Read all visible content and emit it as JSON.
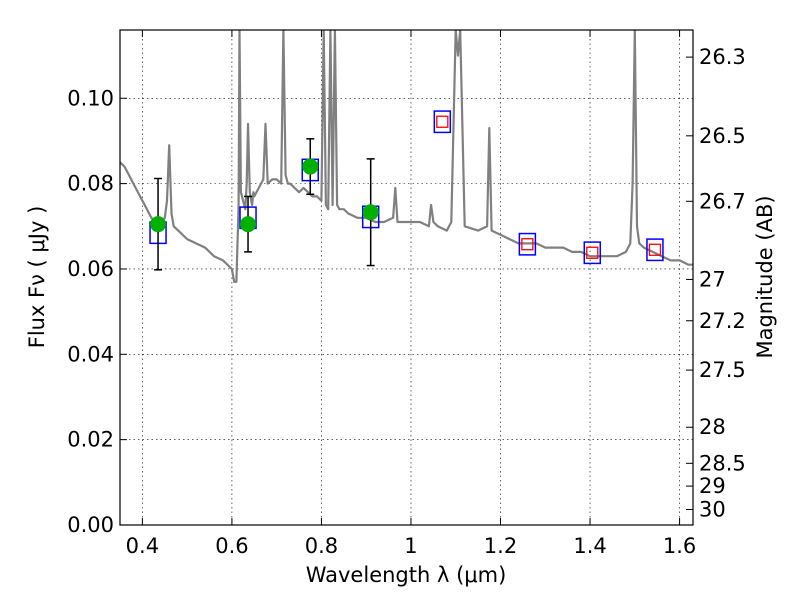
{
  "chart_data": {
    "type": "scatter",
    "xlabel": "Wavelength  λ (μm)",
    "ylabel": "Flux  Fν  ( μJy )",
    "ylabel_right": "Magnitude (AB)",
    "xlim": [
      0.35,
      1.63
    ],
    "ylim": [
      0.0,
      0.116
    ],
    "x_ticks": [
      0.4,
      0.6,
      0.8,
      1.0,
      1.2,
      1.4,
      1.6
    ],
    "x_tick_labels": [
      "0.4",
      "0.6",
      "0.8",
      "1",
      "1.2",
      "1.4",
      "1.6"
    ],
    "y_ticks": [
      0.0,
      0.02,
      0.04,
      0.06,
      0.08,
      0.1
    ],
    "y_tick_labels": [
      "0.00",
      "0.02",
      "0.04",
      "0.06",
      "0.08",
      "0.10"
    ],
    "right_ticks": [
      {
        "label": "26.3",
        "value": 26.3
      },
      {
        "label": "26.5",
        "value": 26.5
      },
      {
        "label": "26.7",
        "value": 26.7
      },
      {
        "label": "27",
        "value": 27.0
      },
      {
        "label": "27.2",
        "value": 27.2
      },
      {
        "label": "27.5",
        "value": 27.5
      },
      {
        "label": "28",
        "value": 28.0
      },
      {
        "label": "28.5",
        "value": 28.5
      },
      {
        "label": "29",
        "value": 29.0
      },
      {
        "label": "30",
        "value": 30.0
      }
    ],
    "grid": true,
    "spectrum": {
      "color": "#808080",
      "x": [
        0.35,
        0.36,
        0.37,
        0.38,
        0.39,
        0.4,
        0.41,
        0.42,
        0.43,
        0.44,
        0.45,
        0.455,
        0.46,
        0.465,
        0.47,
        0.48,
        0.5,
        0.52,
        0.54,
        0.56,
        0.58,
        0.6,
        0.605,
        0.61,
        0.615,
        0.617,
        0.62,
        0.625,
        0.63,
        0.633,
        0.636,
        0.64,
        0.645,
        0.648,
        0.65,
        0.66,
        0.67,
        0.675,
        0.68,
        0.69,
        0.7,
        0.71,
        0.715,
        0.72,
        0.725,
        0.73,
        0.74,
        0.75,
        0.76,
        0.77,
        0.78,
        0.79,
        0.8,
        0.805,
        0.81,
        0.815,
        0.82,
        0.825,
        0.83,
        0.835,
        0.84,
        0.85,
        0.86,
        0.88,
        0.9,
        0.92,
        0.94,
        0.96,
        0.965,
        0.97,
        0.98,
        1.0,
        1.02,
        1.04,
        1.045,
        1.05,
        1.06,
        1.08,
        1.09,
        1.1,
        1.105,
        1.11,
        1.12,
        1.15,
        1.17,
        1.175,
        1.18,
        1.2,
        1.22,
        1.24,
        1.26,
        1.28,
        1.3,
        1.32,
        1.34,
        1.36,
        1.38,
        1.4,
        1.42,
        1.44,
        1.46,
        1.48,
        1.49,
        1.495,
        1.5,
        1.505,
        1.51,
        1.52,
        1.54,
        1.56,
        1.58,
        1.6,
        1.62,
        1.63
      ],
      "y": [
        0.085,
        0.084,
        0.082,
        0.08,
        0.078,
        0.076,
        0.074,
        0.072,
        0.071,
        0.071,
        0.072,
        0.076,
        0.089,
        0.073,
        0.07,
        0.069,
        0.067,
        0.066,
        0.065,
        0.063,
        0.062,
        0.06,
        0.057,
        0.057,
        0.075,
        0.116,
        0.078,
        0.076,
        0.074,
        0.08,
        0.094,
        0.078,
        0.075,
        0.078,
        0.077,
        0.079,
        0.081,
        0.094,
        0.08,
        0.081,
        0.081,
        0.08,
        0.116,
        0.082,
        0.08,
        0.08,
        0.079,
        0.078,
        0.079,
        0.078,
        0.077,
        0.077,
        0.076,
        0.116,
        0.075,
        0.074,
        0.116,
        0.075,
        0.116,
        0.075,
        0.074,
        0.074,
        0.073,
        0.072,
        0.072,
        0.071,
        0.071,
        0.072,
        0.079,
        0.071,
        0.071,
        0.071,
        0.071,
        0.07,
        0.075,
        0.071,
        0.07,
        0.069,
        0.071,
        0.116,
        0.11,
        0.116,
        0.07,
        0.069,
        0.07,
        0.093,
        0.069,
        0.068,
        0.067,
        0.066,
        0.066,
        0.066,
        0.065,
        0.065,
        0.065,
        0.064,
        0.064,
        0.063,
        0.063,
        0.063,
        0.063,
        0.064,
        0.066,
        0.08,
        0.116,
        0.07,
        0.066,
        0.065,
        0.064,
        0.063,
        0.062,
        0.062,
        0.061,
        0.061
      ]
    },
    "observed_points": {
      "color": "#00b000",
      "points": [
        {
          "x": 0.435,
          "y": 0.0705,
          "yerr": 0.0107
        },
        {
          "x": 0.636,
          "y": 0.0705,
          "yerr": 0.0065
        },
        {
          "x": 0.775,
          "y": 0.084,
          "yerr": 0.0065
        },
        {
          "x": 0.91,
          "y": 0.0733,
          "yerr": 0.0125
        }
      ]
    },
    "model_boxes": {
      "color": "#0000ff",
      "points": [
        {
          "x": 0.435,
          "y": 0.0685,
          "h": 0.005
        },
        {
          "x": 0.636,
          "y": 0.072,
          "h": 0.005
        },
        {
          "x": 0.775,
          "y": 0.0832,
          "h": 0.005
        },
        {
          "x": 0.91,
          "y": 0.0722,
          "h": 0.005
        },
        {
          "x": 1.07,
          "y": 0.0945,
          "h": 0.005
        },
        {
          "x": 1.26,
          "y": 0.0658,
          "h": 0.005
        },
        {
          "x": 1.405,
          "y": 0.0638,
          "h": 0.005
        },
        {
          "x": 1.545,
          "y": 0.0645,
          "h": 0.005
        }
      ]
    },
    "upper_points": {
      "color": "#ff0000",
      "points": [
        {
          "x": 1.07,
          "y": 0.0945
        },
        {
          "x": 1.26,
          "y": 0.0658
        },
        {
          "x": 1.405,
          "y": 0.0638
        },
        {
          "x": 1.545,
          "y": 0.0645
        }
      ]
    }
  }
}
